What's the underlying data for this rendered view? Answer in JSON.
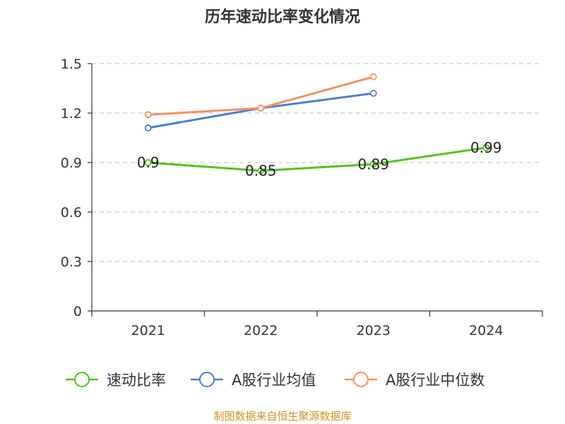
{
  "chart_data": {
    "type": "line",
    "title": "历年速动比率变化情况",
    "categories": [
      "2021",
      "2022",
      "2023",
      "2024"
    ],
    "ylim": [
      0,
      1.5
    ],
    "yticks": [
      "0",
      "0.3",
      "0.6",
      "0.9",
      "1.2",
      "1.5"
    ],
    "ytick_values": [
      0,
      0.3,
      0.6,
      0.9,
      1.2,
      1.5
    ],
    "grid": true,
    "legend_position": "bottom",
    "series": [
      {
        "name": "速动比率",
        "color": "#52c41a",
        "values": [
          0.9,
          0.85,
          0.89,
          0.99
        ],
        "labels": [
          "0.9",
          "0.85",
          "0.89",
          "0.99"
        ]
      },
      {
        "name": "A股行业均值",
        "color": "#4a7fd6",
        "values": [
          1.11,
          1.23,
          1.32,
          null
        ]
      },
      {
        "name": "A股行业中位数",
        "color": "#f5925e",
        "values": [
          1.19,
          1.23,
          1.42,
          null
        ]
      }
    ]
  },
  "footer": "制图数据来自恒生聚源数据库"
}
